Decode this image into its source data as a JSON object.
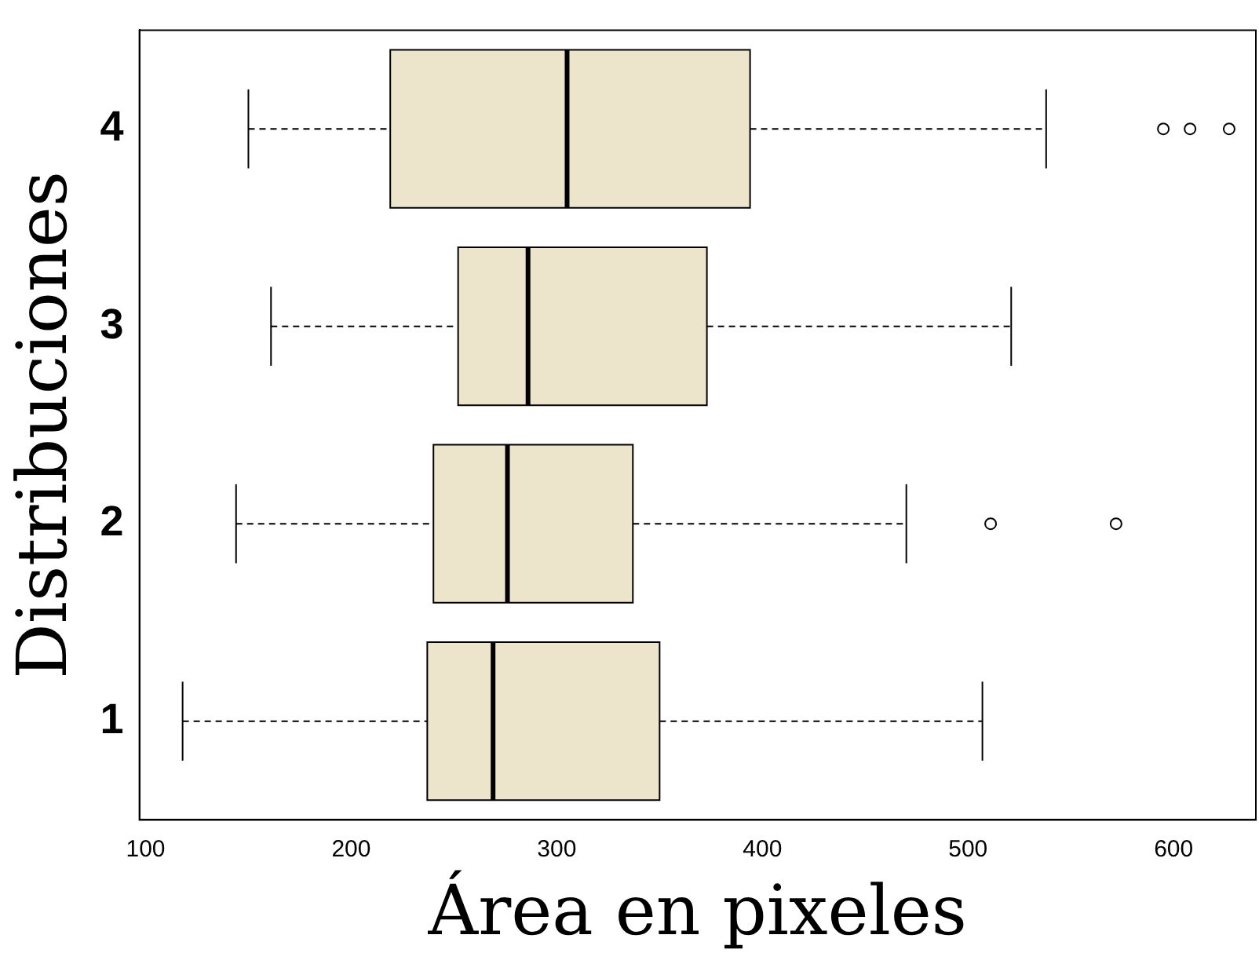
{
  "chart_data": {
    "type": "box",
    "orientation": "horizontal",
    "xlabel": "Área en pixeles",
    "ylabel": "Distribuciones",
    "categories": [
      "4",
      "3",
      "2",
      "1"
    ],
    "color": "#ede4cc",
    "xlim": [
      97,
      640
    ],
    "xticks": [
      100,
      200,
      300,
      400,
      500,
      600
    ],
    "grid": false,
    "legend": false,
    "boxes": [
      {
        "low": 150,
        "q1": 219,
        "median": 305,
        "q3": 394,
        "high": 538,
        "outliers": [
          595,
          608,
          627
        ]
      },
      {
        "low": 161,
        "q1": 252,
        "median": 286,
        "q3": 373,
        "high": 521
      },
      {
        "low": 144,
        "q1": 240,
        "median": 276,
        "q3": 337,
        "high": 470,
        "outliers": [
          511,
          572
        ]
      },
      {
        "low": 118,
        "q1": 237,
        "median": 269,
        "q3": 350,
        "high": 507
      }
    ]
  }
}
